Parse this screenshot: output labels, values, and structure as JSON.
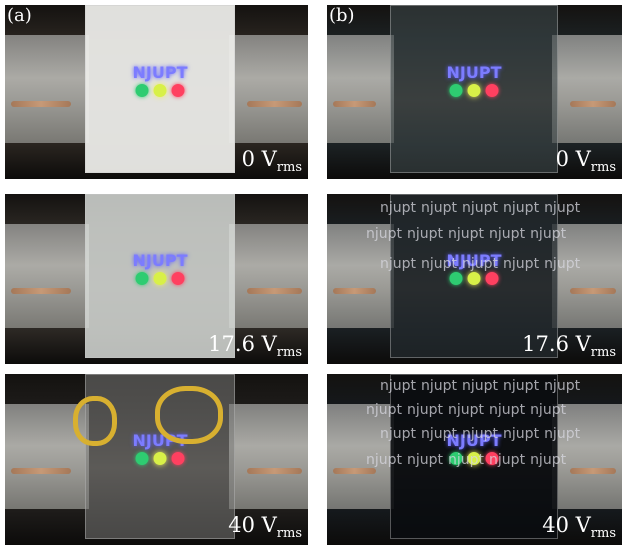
{
  "panels": [
    {
      "label": "(a)",
      "rows": [
        {
          "voltage": "0 V",
          "subscript": "rms",
          "logo": "NJUPT"
        },
        {
          "voltage": "17.6 V",
          "subscript": "rms",
          "logo": "NJUPT"
        },
        {
          "voltage": "40 V",
          "subscript": "rms",
          "logo": "NJUPT"
        }
      ]
    },
    {
      "label": "(b)",
      "rows": [
        {
          "voltage": "0 V",
          "subscript": "rms",
          "logo": "NJUPT"
        },
        {
          "voltage": "17.6 V",
          "subscript": "rms",
          "logo": "NJUPT",
          "pattern": "njupt"
        },
        {
          "voltage": "40 V",
          "subscript": "rms",
          "logo": "NJUPT",
          "pattern": "njupt"
        }
      ]
    }
  ]
}
